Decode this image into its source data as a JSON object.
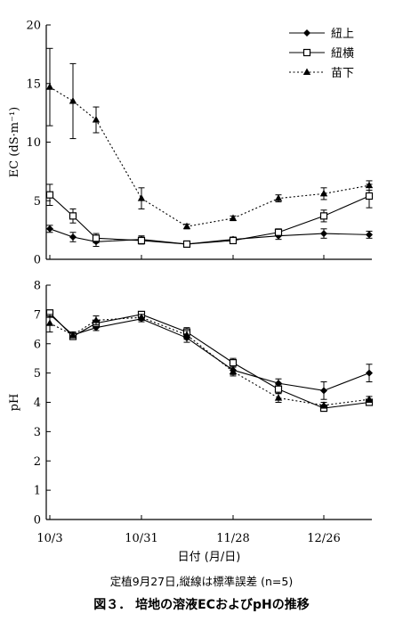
{
  "chart_data": [
    {
      "type": "line",
      "panel": "top",
      "ylabel": "EC (dS·m⁻¹)",
      "ylim": [
        0,
        20
      ],
      "yticks": [
        0,
        5,
        10,
        15,
        20
      ],
      "x": [
        "10/3",
        "10/10",
        "10/17",
        "10/31",
        "11/14",
        "11/28",
        "12/12",
        "12/26",
        "1/9"
      ],
      "series": [
        {
          "name": "紐上",
          "marker": "diamond",
          "line": "solid",
          "values": [
            2.6,
            1.9,
            1.5,
            1.7,
            1.3,
            1.7,
            2.0,
            2.2,
            2.1
          ],
          "errors": [
            0.3,
            0.4,
            0.4,
            0.3,
            0.2,
            0.2,
            0.3,
            0.4,
            0.3
          ]
        },
        {
          "name": "紐横",
          "marker": "open-square",
          "line": "solid",
          "values": [
            5.5,
            3.7,
            1.8,
            1.6,
            1.3,
            1.6,
            2.3,
            3.7,
            5.4
          ],
          "errors": [
            0.9,
            0.6,
            0.4,
            0.3,
            0.2,
            0.2,
            0.3,
            0.5,
            1.0
          ]
        },
        {
          "name": "苗下",
          "marker": "triangle",
          "line": "dotted",
          "values": [
            14.7,
            13.5,
            11.9,
            5.2,
            2.8,
            3.5,
            5.2,
            5.6,
            6.3
          ],
          "errors": [
            3.3,
            3.2,
            1.1,
            0.9,
            0.2,
            0.2,
            0.3,
            0.5,
            0.4
          ]
        }
      ]
    },
    {
      "type": "line",
      "panel": "bottom",
      "ylabel": "pH",
      "ylim": [
        0,
        8
      ],
      "yticks": [
        0,
        1,
        2,
        3,
        4,
        5,
        6,
        7,
        8
      ],
      "xlabel": "日付 (月/日)",
      "xticks": [
        "10/3",
        "10/31",
        "11/28",
        "12/26"
      ],
      "x": [
        "10/3",
        "10/10",
        "10/17",
        "10/31",
        "11/14",
        "11/28",
        "12/12",
        "12/26",
        "1/9"
      ],
      "series": [
        {
          "name": "紐上",
          "marker": "diamond",
          "line": "solid",
          "values": [
            7.0,
            6.3,
            6.55,
            6.85,
            6.2,
            5.1,
            4.65,
            4.4,
            5.0
          ],
          "errors": [
            0.1,
            0.1,
            0.1,
            0.1,
            0.15,
            0.15,
            0.15,
            0.3,
            0.3
          ]
        },
        {
          "name": "紐横",
          "marker": "open-square",
          "line": "solid",
          "values": [
            7.05,
            6.25,
            6.7,
            7.0,
            6.4,
            5.35,
            4.45,
            3.8,
            4.0
          ],
          "errors": [
            0.1,
            0.1,
            0.1,
            0.05,
            0.15,
            0.15,
            0.15,
            0.1,
            0.1
          ]
        },
        {
          "name": "苗下",
          "marker": "triangle",
          "line": "dotted",
          "values": [
            6.7,
            6.3,
            6.8,
            6.9,
            6.3,
            5.05,
            4.15,
            3.9,
            4.1
          ],
          "errors": [
            0.3,
            0.1,
            0.15,
            0.1,
            0.15,
            0.15,
            0.15,
            0.1,
            0.1
          ]
        }
      ]
    }
  ],
  "legend": [
    "紐上",
    "紐横",
    "苗下"
  ],
  "note": "定植9月27日,縦線は標準誤差 (n=5)",
  "caption": "図３． 培地の溶液ECおよびpHの推移"
}
